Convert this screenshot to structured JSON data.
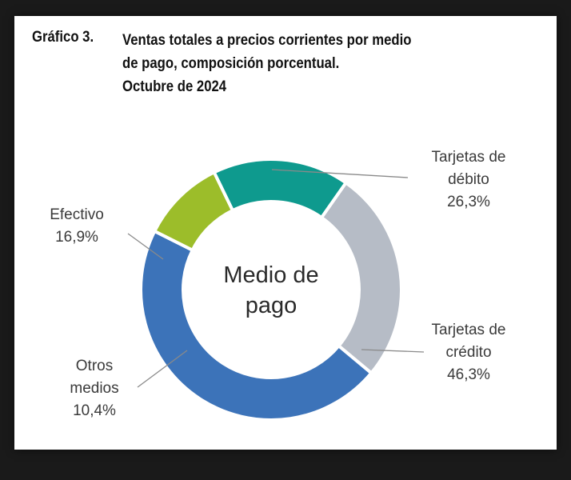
{
  "title": {
    "number": "Gráfico 3.",
    "lines": [
      "Ventas totales a precios corrientes por medio",
      "de pago, composición porcentual.",
      "Octubre de 2024"
    ]
  },
  "chart_data": {
    "type": "pie",
    "donut": true,
    "center_label": [
      "Medio de",
      "pago"
    ],
    "slices": [
      {
        "label": [
          "Tarjetas de",
          "débito"
        ],
        "value_label": "26,3%",
        "value": 26.3,
        "color": "#b6bcc6"
      },
      {
        "label": [
          "Tarjetas de",
          "crédito"
        ],
        "value_label": "46,3%",
        "value": 46.3,
        "color": "#3c73b9"
      },
      {
        "label": [
          "Otros",
          "medios"
        ],
        "value_label": "10,4%",
        "value": 10.4,
        "color": "#9cbd2a"
      },
      {
        "label": [
          "Efectivo"
        ],
        "value_label": "16,9%",
        "value": 16.9,
        "color": "#0e9a8e"
      }
    ],
    "legend": "none",
    "grid": false
  }
}
